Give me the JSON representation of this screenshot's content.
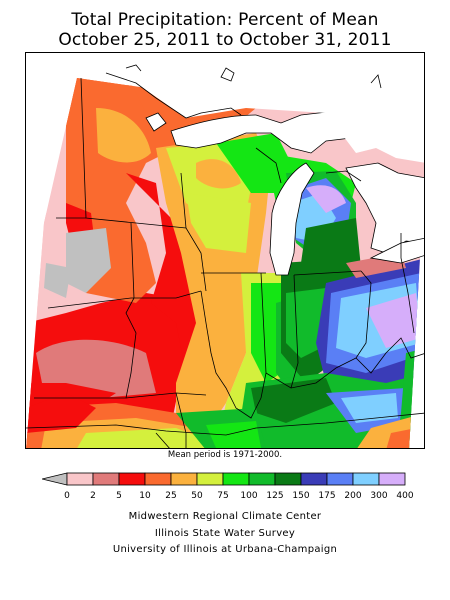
{
  "header": {
    "title_line1": "Total Precipitation: Percent of Mean",
    "title_line2": "October 25, 2011 to October 31, 2011"
  },
  "map": {
    "note": "Mean period is 1971-2000.",
    "colors": {
      "no_data": "#c0c0c0",
      "0-2": "#f9c6c9",
      "2-5": "#e07a7a",
      "5-10": "#f50d0d",
      "10-25": "#fa6a2f",
      "25-50": "#fbb13e",
      "50-75": "#d4f03d",
      "75-100": "#14e614",
      "100-125": "#11bb2b",
      "125-150": "#0a7a16",
      "150-175": "#3a3cb7",
      "175-200": "#5a7ff5",
      "200-300": "#7fcfff",
      "300-400": "#d6aefa"
    }
  },
  "legend": {
    "labels": [
      "0",
      "2",
      "5",
      "10",
      "25",
      "50",
      "75",
      "100",
      "125",
      "150",
      "175",
      "200",
      "300",
      "400"
    ],
    "colors": [
      "#f9c6c9",
      "#e07a7a",
      "#f50d0d",
      "#fa6a2f",
      "#fbb13e",
      "#d4f03d",
      "#14e614",
      "#11bb2b",
      "#0a7a16",
      "#3a3cb7",
      "#5a7ff5",
      "#7fcfff",
      "#d6aefa"
    ],
    "underflow_color": "#c0c0c0"
  },
  "credits": {
    "line1": "Midwestern Regional Climate Center",
    "line2": "Illinois State Water Survey",
    "line3": "University of Illinois at Urbana-Champaign"
  }
}
